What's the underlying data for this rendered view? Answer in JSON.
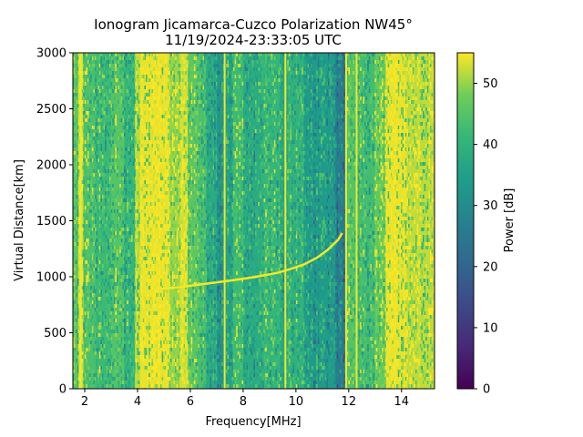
{
  "chart_data": {
    "type": "heatmap",
    "title_line1": "Ionogram Jicamarca-Cuzco Polarization NW45°",
    "title_line2": "11/19/2024-23:33:05 UTC",
    "xlabel": "Frequency[MHz]",
    "ylabel": "Virtual Distance[km]",
    "xlim": [
      1.55,
      15.25
    ],
    "ylim": [
      0,
      3000
    ],
    "x_ticks": [
      2,
      4,
      6,
      8,
      10,
      12,
      14
    ],
    "y_ticks": [
      0,
      500,
      1000,
      1500,
      2000,
      2500,
      3000
    ],
    "colorbar": {
      "label": "Power [dB]",
      "range": [
        0,
        55
      ],
      "ticks": [
        0,
        10,
        20,
        30,
        40,
        50
      ],
      "colormap": "viridis"
    },
    "column_power_profile": {
      "freq_edges": [
        1.55,
        1.75,
        1.95,
        2.4,
        3.0,
        3.5,
        3.9,
        4.1,
        5.2,
        5.6,
        5.9,
        6.3,
        6.6,
        7.0,
        7.35,
        7.6,
        8.0,
        8.7,
        9.4,
        9.7,
        10.3,
        11.5,
        11.9,
        12.3,
        13.0,
        13.4,
        14.2,
        15.25
      ],
      "mean_power_db": [
        46,
        53,
        44,
        42,
        45,
        41,
        52,
        54,
        50,
        53,
        46,
        44,
        38,
        33,
        36,
        42,
        38,
        41,
        37,
        40,
        34,
        26,
        45,
        43,
        47,
        54,
        52
      ]
    },
    "trace": {
      "freq_mhz": [
        4.7,
        5.5,
        6.5,
        7.5,
        8.5,
        9.3,
        9.8,
        10.3,
        10.8,
        11.2,
        11.6,
        11.75
      ],
      "virtual_distance_km": [
        890,
        905,
        935,
        965,
        1000,
        1035,
        1070,
        1110,
        1170,
        1240,
        1330,
        1390
      ]
    },
    "vertical_lines_mhz": [
      1.85,
      7.3,
      9.6,
      11.9,
      12.3
    ]
  }
}
